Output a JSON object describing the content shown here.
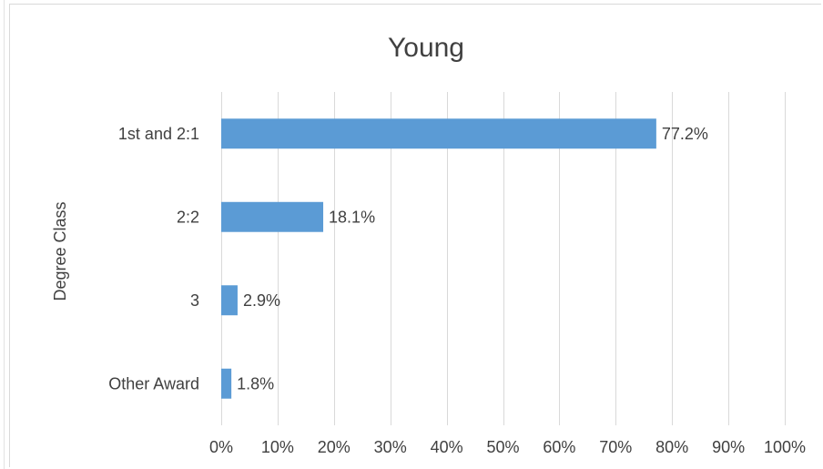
{
  "chart_data": {
    "type": "bar",
    "orientation": "horizontal",
    "title": "Young",
    "xlabel": "",
    "ylabel": "Degree Class",
    "categories": [
      "1st and 2:1",
      "2:2",
      "3",
      "Other Award"
    ],
    "values": [
      77.2,
      18.1,
      2.9,
      1.8
    ],
    "data_labels": [
      "77.2%",
      "18.1%",
      "2.9%",
      "1.8%"
    ],
    "xlim": [
      0,
      100
    ],
    "x_ticks": [
      0,
      10,
      20,
      30,
      40,
      50,
      60,
      70,
      80,
      90,
      100
    ],
    "x_tick_labels": [
      "0%",
      "10%",
      "20%",
      "30%",
      "40%",
      "50%",
      "60%",
      "70%",
      "80%",
      "90%",
      "100%"
    ],
    "grid": "vertical",
    "legend": "none",
    "bar_color": "#5b9bd5",
    "grid_color": "#d9d9d9",
    "text_color": "#404040"
  }
}
